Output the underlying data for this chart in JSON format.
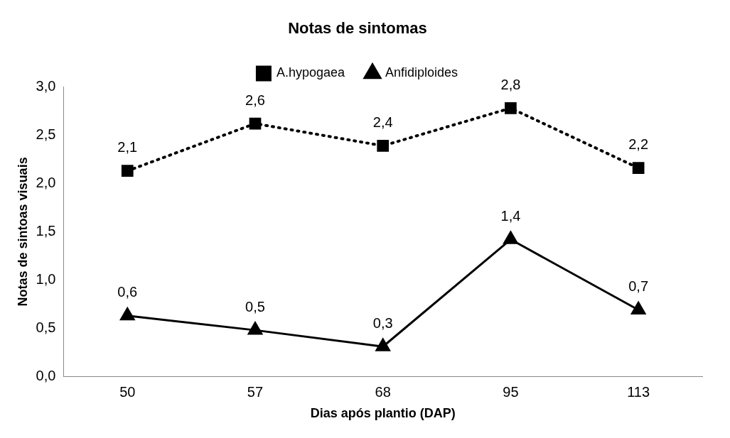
{
  "chart_data": {
    "type": "line",
    "title": "Notas de sintomas",
    "xlabel": "Dias após plantio (DAP)",
    "ylabel": "Notas de sintoas visuais",
    "categories": [
      "50",
      "57",
      "68",
      "95",
      "113"
    ],
    "series": [
      {
        "name": "A.hypogaea",
        "color": "#000000",
        "values": [
          2.13,
          2.62,
          2.39,
          2.78,
          2.16
        ],
        "value_labels": [
          "2,1",
          "2,6",
          "2,4",
          "2,8",
          "2,2"
        ],
        "marker": "square",
        "line_style": "dotted"
      },
      {
        "name": "Anfidiploides",
        "color": "#000000",
        "values": [
          0.63,
          0.48,
          0.31,
          1.42,
          0.69
        ],
        "value_labels": [
          "0,6",
          "0,5",
          "0,3",
          "1,4",
          "0,7"
        ],
        "marker": "triangle",
        "line_style": "solid"
      }
    ],
    "ylim": [
      0,
      3
    ],
    "yticks": [
      {
        "value": 0,
        "label": "0,0"
      },
      {
        "value": 0.5,
        "label": "0,5"
      },
      {
        "value": 1,
        "label": "1,0"
      },
      {
        "value": 1.5,
        "label": "1,5"
      },
      {
        "value": 2,
        "label": "2,0"
      },
      {
        "value": 2.5,
        "label": "2,5"
      },
      {
        "value": 3,
        "label": "3,0"
      }
    ],
    "legend": "top"
  }
}
